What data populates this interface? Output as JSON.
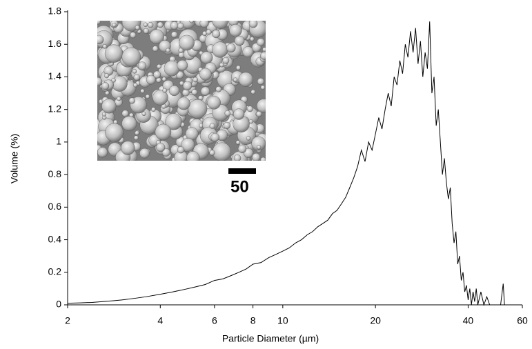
{
  "chart_data": {
    "type": "line",
    "x_label": "Particle Diameter (µm)",
    "y_label": "Volume (%)",
    "inset_scale_label": "50",
    "log_x": true,
    "color": "#000000",
    "xlim": [
      2,
      60
    ],
    "xticks": [
      2,
      4,
      6,
      8,
      10,
      20,
      40,
      60
    ],
    "ylim": [
      0,
      1.8
    ],
    "yticks": [
      0,
      0.2,
      0.4,
      0.6,
      0.8,
      1,
      1.2,
      1.4,
      1.6,
      1.8
    ],
    "x": [
      2,
      2.2,
      2.4,
      2.6,
      2.8,
      3,
      3.3,
      3.6,
      4,
      4.4,
      4.8,
      5.2,
      5.6,
      6,
      6.4,
      6.8,
      7.2,
      7.6,
      8,
      8.5,
      9,
      9.5,
      10,
      10.5,
      11,
      11.5,
      12,
      12.5,
      13,
      13.5,
      14,
      14.5,
      15,
      15.5,
      16,
      16.5,
      17,
      17.5,
      18,
      18.5,
      19,
      19.5,
      20,
      20.5,
      21,
      21.5,
      22,
      22.5,
      23,
      23.5,
      24,
      24.5,
      25,
      25.5,
      26,
      26.5,
      27,
      27.5,
      28,
      28.5,
      29,
      29.5,
      30,
      30.5,
      31,
      31.5,
      32,
      32.5,
      33,
      33.5,
      34,
      34.5,
      35,
      35.5,
      36,
      36.5,
      37,
      37.5,
      38,
      38.5,
      39,
      39.5,
      40,
      40.5,
      41,
      41.5,
      42,
      42.5,
      43,
      44,
      45,
      46,
      47,
      48,
      50,
      51,
      52,
      52.5
    ],
    "values": [
      0.01,
      0.012,
      0.015,
      0.02,
      0.025,
      0.03,
      0.04,
      0.05,
      0.065,
      0.08,
      0.095,
      0.11,
      0.125,
      0.15,
      0.16,
      0.18,
      0.2,
      0.22,
      0.25,
      0.26,
      0.29,
      0.31,
      0.33,
      0.35,
      0.38,
      0.4,
      0.43,
      0.45,
      0.48,
      0.5,
      0.52,
      0.56,
      0.58,
      0.62,
      0.66,
      0.72,
      0.78,
      0.85,
      0.95,
      0.88,
      1.0,
      0.95,
      1.05,
      1.15,
      1.08,
      1.2,
      1.3,
      1.22,
      1.4,
      1.35,
      1.5,
      1.42,
      1.6,
      1.52,
      1.68,
      1.55,
      1.7,
      1.48,
      1.62,
      1.4,
      1.55,
      1.45,
      1.74,
      1.3,
      1.4,
      1.1,
      1.2,
      1.0,
      0.8,
      0.9,
      0.75,
      0.65,
      0.72,
      0.5,
      0.38,
      0.45,
      0.25,
      0.3,
      0.15,
      0.2,
      0.08,
      0.12,
      0.03,
      0.1,
      0.0,
      0.08,
      0.02,
      0.1,
      0.0,
      0.08,
      0.0,
      0.05,
      0.0,
      0.0,
      0.0,
      0.0,
      0.13,
      0.0
    ]
  }
}
